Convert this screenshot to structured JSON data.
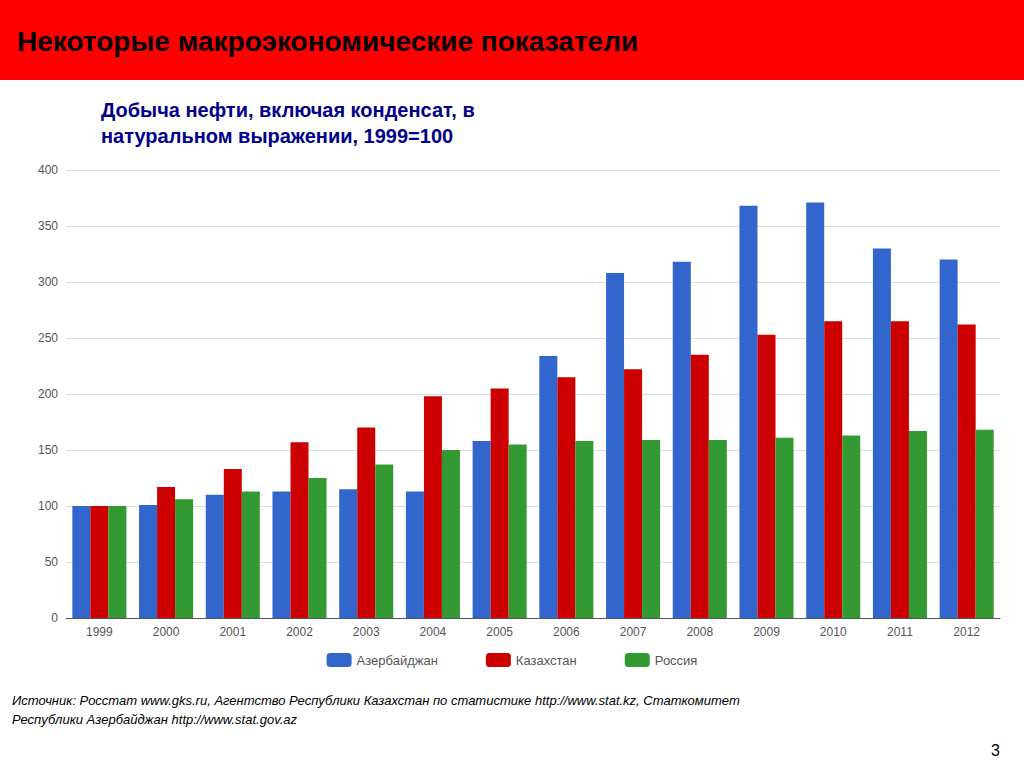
{
  "chart_data": {
    "type": "bar",
    "title": "Некоторые макроэкономические показатели",
    "subtitle": "Добыча нефти, включая конденсат, в\nнатуральном выражении, 1999=100",
    "categories": [
      "1999",
      "2000",
      "2001",
      "2002",
      "2003",
      "2004",
      "2005",
      "2006",
      "2007",
      "2008",
      "2009",
      "2010",
      "2011",
      "2012"
    ],
    "series": [
      {
        "name": "Азербайджан",
        "color": "#3366CC",
        "values": [
          100,
          101,
          110,
          113,
          115,
          113,
          158,
          234,
          308,
          318,
          368,
          371,
          330,
          320
        ]
      },
      {
        "name": "Казахстан",
        "color": "#CC0000",
        "values": [
          100,
          117,
          133,
          157,
          170,
          198,
          205,
          215,
          222,
          235,
          253,
          265,
          265,
          262
        ]
      },
      {
        "name": "Россия",
        "color": "#339933",
        "values": [
          100,
          106,
          113,
          125,
          137,
          150,
          155,
          158,
          159,
          159,
          161,
          163,
          167,
          168
        ]
      }
    ],
    "ylim": [
      0,
      400
    ],
    "yticks": [
      0,
      50,
      100,
      150,
      200,
      250,
      300,
      350,
      400
    ],
    "grid": true,
    "legend": "bottom",
    "annotations": [
      "Источник: Росстат www.gks.ru, Агентство Республики Казахстан по статистике http://www.stat.kz, Статкомитет",
      "Республики Азербайджан http://www.stat.gov.az",
      "3"
    ]
  }
}
